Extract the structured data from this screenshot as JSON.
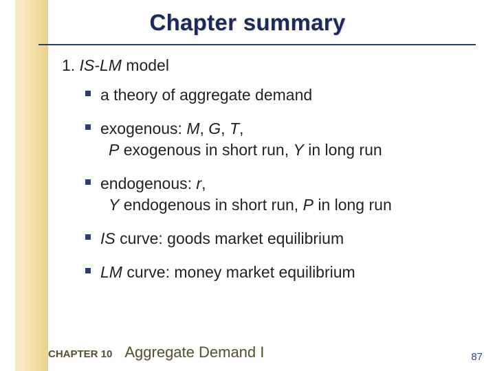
{
  "colors": {
    "title_color": "#1a2a5a",
    "underline_color": "#2b3c6e",
    "bullet_color": "#2b3c6e",
    "footer_color": "#5a5230",
    "pagenum_color": "#2d4d8f",
    "leftbar_gradient": [
      "#f8e9c0",
      "#e8ca78"
    ]
  },
  "title": "Chapter summary",
  "item": {
    "number": "1.",
    "label_italic": "IS-LM",
    "label_rest": " model"
  },
  "bullets": [
    {
      "line1": "a theory of aggregate demand"
    },
    {
      "line1_parts": [
        {
          "t": "exogenous:  ",
          "i": false
        },
        {
          "t": "M",
          "i": true
        },
        {
          "t": ", ",
          "i": false
        },
        {
          "t": "G",
          "i": true
        },
        {
          "t": ", ",
          "i": false
        },
        {
          "t": "T",
          "i": true
        },
        {
          "t": ",",
          "i": false
        }
      ],
      "line2_parts": [
        {
          "t": "P",
          "i": true
        },
        {
          "t": "  exogenous in short run, ",
          "i": false
        },
        {
          "t": "Y",
          "i": true
        },
        {
          "t": "  in long run",
          "i": false
        }
      ]
    },
    {
      "line1_parts": [
        {
          "t": "endogenous:  ",
          "i": false
        },
        {
          "t": "r",
          "i": true
        },
        {
          "t": ",",
          "i": false
        }
      ],
      "line2_parts": [
        {
          "t": "Y",
          "i": true
        },
        {
          "t": "  endogenous in short run, ",
          "i": false
        },
        {
          "t": "P",
          "i": true
        },
        {
          "t": "  in long run",
          "i": false
        }
      ]
    },
    {
      "line1_parts": [
        {
          "t": "IS",
          "i": true
        },
        {
          "t": " curve:  goods market equilibrium",
          "i": false
        }
      ]
    },
    {
      "line1_parts": [
        {
          "t": "LM",
          "i": true
        },
        {
          "t": " curve:  money market equilibrium",
          "i": false
        }
      ]
    }
  ],
  "footer": {
    "chapter_label": "CHAPTER 10",
    "chapter_title": "Aggregate Demand I",
    "page_number": "87"
  }
}
